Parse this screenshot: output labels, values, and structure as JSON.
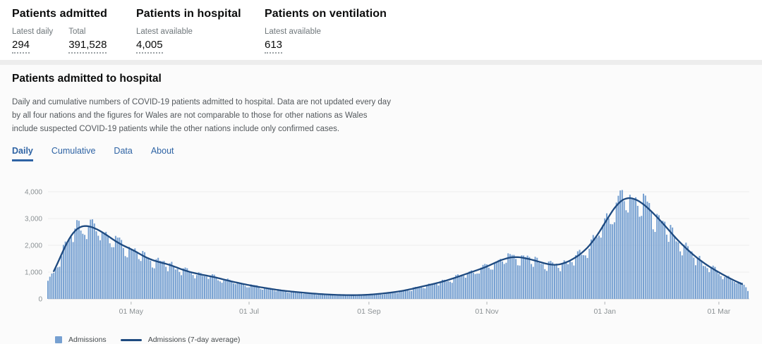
{
  "header": {
    "stats": [
      {
        "title": "Patients admitted",
        "metrics": [
          {
            "label": "Latest daily",
            "value": "294"
          },
          {
            "label": "Total",
            "value": "391,528"
          }
        ]
      },
      {
        "title": "Patients in hospital",
        "metrics": [
          {
            "label": "Latest available",
            "value": "4,005"
          }
        ]
      },
      {
        "title": "Patients on ventilation",
        "metrics": [
          {
            "label": "Latest available",
            "value": "613"
          }
        ]
      }
    ]
  },
  "card": {
    "title": "Patients admitted to hospital",
    "description": "Daily and cumulative numbers of COVID-19 patients admitted to hospital. Data are not updated every day by all four nations and the figures for Wales are not comparable to those for other nations as Wales include suspected COVID-19 patients while the other nations include only confirmed cases.",
    "tabs": [
      {
        "label": "Daily",
        "active": true
      },
      {
        "label": "Cumulative",
        "active": false
      },
      {
        "label": "Data",
        "active": false
      },
      {
        "label": "About",
        "active": false
      }
    ]
  },
  "chart_data": {
    "type": "bar",
    "title": "Patients admitted to hospital",
    "x_range": [
      "2020-03-19",
      "2021-03-16"
    ],
    "x_ticks": [
      {
        "label": "01 May",
        "date": "2020-05-01"
      },
      {
        "label": "01 Jul",
        "date": "2020-07-01"
      },
      {
        "label": "01 Sep",
        "date": "2020-09-01"
      },
      {
        "label": "01 Nov",
        "date": "2020-11-01"
      },
      {
        "label": "01 Jan",
        "date": "2021-01-01"
      },
      {
        "label": "01 Mar",
        "date": "2021-03-01"
      }
    ],
    "y_ticks": [
      0,
      1000,
      2000,
      3000,
      4000
    ],
    "ylim": [
      0,
      4400
    ],
    "grid": true,
    "legend_position": "bottom-left",
    "latest_daily": 294,
    "series": [
      {
        "name": "Admissions",
        "type": "bar",
        "color": "#76a0d1"
      },
      {
        "name": "Admissions (7-day average)",
        "type": "line",
        "color": "#1e4a80",
        "points": [
          [
            "2020-03-19",
            620
          ],
          [
            "2020-03-22",
            1000
          ],
          [
            "2020-03-25",
            1500
          ],
          [
            "2020-03-28",
            2000
          ],
          [
            "2020-03-31",
            2400
          ],
          [
            "2020-04-03",
            2650
          ],
          [
            "2020-04-06",
            2740
          ],
          [
            "2020-04-09",
            2730
          ],
          [
            "2020-04-12",
            2650
          ],
          [
            "2020-04-16",
            2500
          ],
          [
            "2020-04-20",
            2300
          ],
          [
            "2020-04-24",
            2100
          ],
          [
            "2020-04-28",
            1950
          ],
          [
            "2020-05-02",
            1830
          ],
          [
            "2020-05-06",
            1650
          ],
          [
            "2020-05-10",
            1500
          ],
          [
            "2020-05-14",
            1400
          ],
          [
            "2020-05-18",
            1330
          ],
          [
            "2020-05-22",
            1250
          ],
          [
            "2020-05-26",
            1130
          ],
          [
            "2020-05-30",
            1030
          ],
          [
            "2020-06-04",
            940
          ],
          [
            "2020-06-09",
            870
          ],
          [
            "2020-06-14",
            800
          ],
          [
            "2020-06-19",
            700
          ],
          [
            "2020-06-24",
            620
          ],
          [
            "2020-06-29",
            540
          ],
          [
            "2020-07-04",
            470
          ],
          [
            "2020-07-10",
            400
          ],
          [
            "2020-07-16",
            330
          ],
          [
            "2020-07-22",
            280
          ],
          [
            "2020-07-28",
            240
          ],
          [
            "2020-08-03",
            200
          ],
          [
            "2020-08-09",
            170
          ],
          [
            "2020-08-15",
            150
          ],
          [
            "2020-08-21",
            140
          ],
          [
            "2020-08-27",
            140
          ],
          [
            "2020-09-02",
            160
          ],
          [
            "2020-09-08",
            200
          ],
          [
            "2020-09-14",
            250
          ],
          [
            "2020-09-20",
            320
          ],
          [
            "2020-09-26",
            420
          ],
          [
            "2020-10-02",
            520
          ],
          [
            "2020-10-08",
            620
          ],
          [
            "2020-10-14",
            750
          ],
          [
            "2020-10-20",
            900
          ],
          [
            "2020-10-26",
            1050
          ],
          [
            "2020-11-01",
            1200
          ],
          [
            "2020-11-06",
            1380
          ],
          [
            "2020-11-11",
            1520
          ],
          [
            "2020-11-16",
            1580
          ],
          [
            "2020-11-21",
            1520
          ],
          [
            "2020-11-26",
            1430
          ],
          [
            "2020-12-01",
            1320
          ],
          [
            "2020-12-06",
            1250
          ],
          [
            "2020-12-11",
            1320
          ],
          [
            "2020-12-16",
            1500
          ],
          [
            "2020-12-21",
            1750
          ],
          [
            "2020-12-26",
            2150
          ],
          [
            "2020-12-31",
            2700
          ],
          [
            "2021-01-04",
            3200
          ],
          [
            "2021-01-08",
            3600
          ],
          [
            "2021-01-12",
            3790
          ],
          [
            "2021-01-16",
            3760
          ],
          [
            "2021-01-20",
            3600
          ],
          [
            "2021-01-24",
            3350
          ],
          [
            "2021-01-28",
            3050
          ],
          [
            "2021-02-01",
            2750
          ],
          [
            "2021-02-05",
            2400
          ],
          [
            "2021-02-09",
            2100
          ],
          [
            "2021-02-13",
            1820
          ],
          [
            "2021-02-17",
            1570
          ],
          [
            "2021-02-21",
            1350
          ],
          [
            "2021-02-25",
            1160
          ],
          [
            "2021-03-01",
            990
          ],
          [
            "2021-03-05",
            830
          ],
          [
            "2021-03-09",
            680
          ],
          [
            "2021-03-13",
            550
          ],
          [
            "2021-03-16",
            460
          ]
        ]
      }
    ]
  },
  "colors": {
    "accent_blue": "#2e63a4",
    "bar_blue": "#76a0d1",
    "line_navy": "#1e4a80",
    "axis_text": "#8b9194",
    "gridline": "#ececec",
    "baseline": "#c9cdd0"
  }
}
